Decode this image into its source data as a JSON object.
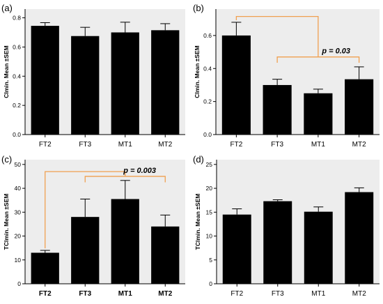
{
  "colors": {
    "plot_background": "#ededed",
    "bar": "#000000",
    "bracket": "#f0a050",
    "axis": "#000000"
  },
  "chart_data": [
    {
      "panel": "(a)",
      "type": "bar",
      "categories": [
        "FT2",
        "FT3",
        "MT1",
        "MT2"
      ],
      "bold_categories": false,
      "values": [
        0.745,
        0.675,
        0.7,
        0.715
      ],
      "errors": [
        0.022,
        0.06,
        0.07,
        0.045
      ],
      "ylabel": "Clmin. Mean ±SEM",
      "ylim": [
        0,
        0.86
      ],
      "yticks": [
        0.0,
        0.2,
        0.4,
        0.6,
        0.8
      ],
      "tick_labels": [
        "0.0",
        "0.2",
        "0.4",
        "0.6",
        "0.8"
      ],
      "annotation": null
    },
    {
      "panel": "(b)",
      "type": "bar",
      "categories": [
        "FT2",
        "FT3",
        "MT1",
        "MT2"
      ],
      "bold_categories": false,
      "values": [
        0.6,
        0.3,
        0.25,
        0.335
      ],
      "errors": [
        0.08,
        0.035,
        0.025,
        0.075
      ],
      "ylabel": "Clmin. Mean ±SEM",
      "ylim": [
        0,
        0.76
      ],
      "yticks": [
        0.0,
        0.2,
        0.4,
        0.6
      ],
      "tick_labels": [
        "0.0",
        "0.2",
        "0.4",
        "0.6"
      ],
      "annotation": {
        "text": "p = 0.03",
        "outer_level": 0.715,
        "inner_level": 0.47,
        "end_level": 0.435
      }
    },
    {
      "panel": "(c)",
      "type": "bar",
      "categories": [
        "FT2",
        "FT3",
        "MT1",
        "MT2"
      ],
      "bold_categories": true,
      "values": [
        13,
        28,
        35.5,
        24
      ],
      "errors": [
        1.0,
        7.5,
        7.8,
        4.8
      ],
      "ylabel": "TClmin. Mean ±SEM",
      "ylim": [
        0,
        52
      ],
      "yticks": [
        0,
        10,
        20,
        30,
        40,
        50
      ],
      "tick_labels": [
        "0",
        "10",
        "20",
        "30",
        "40",
        "50"
      ],
      "annotation": {
        "text": "p = 0.003",
        "outer_level": 47.0,
        "inner_level": 45.0,
        "end_level": 42.5
      }
    },
    {
      "panel": "(d)",
      "type": "bar",
      "categories": [
        "FT2",
        "FT3",
        "MT1",
        "MT2"
      ],
      "bold_categories": false,
      "values": [
        14.5,
        17.3,
        15.1,
        19.2
      ],
      "errors": [
        1.2,
        0.3,
        1.0,
        0.9
      ],
      "ylabel": "TClmin. Mean ±SEM",
      "ylim": [
        0,
        26
      ],
      "yticks": [
        0,
        5,
        10,
        15,
        20,
        25
      ],
      "tick_labels": [
        "0",
        "5",
        "10",
        "15",
        "20",
        "25"
      ],
      "annotation": null
    }
  ]
}
